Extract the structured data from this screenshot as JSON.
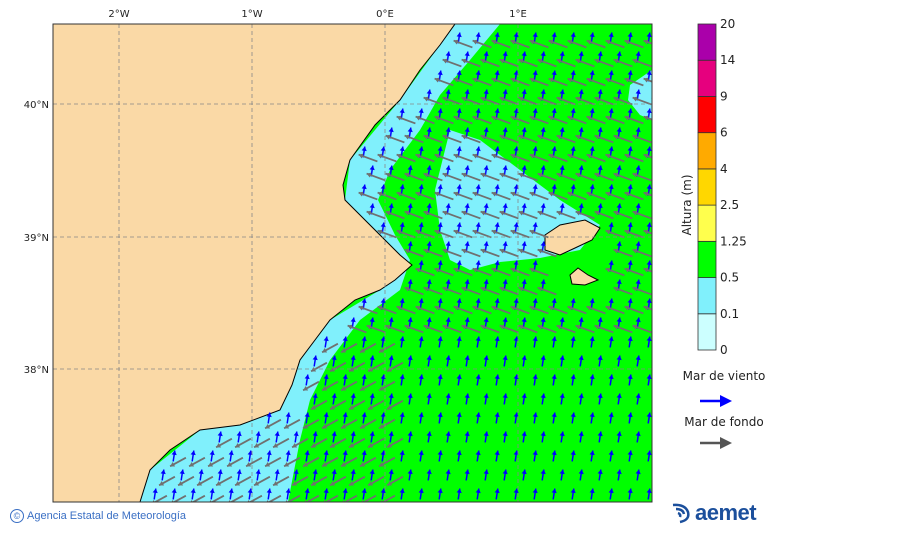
{
  "map": {
    "lon_labels": [
      "2°W",
      "1°W",
      "0°E",
      "1°E"
    ],
    "lat_labels": [
      "40°N",
      "39°N",
      "38°N"
    ],
    "colors": {
      "land": "#fad9a6",
      "sea_low": "#80f0fc",
      "sea_mid": "#00ff00",
      "wind_sea_arrow": "#0000ff",
      "swell_arrow": "#707070"
    }
  },
  "legend": {
    "title": "Altura (m)",
    "levels": [
      "0",
      "0.1",
      "0.5",
      "1.25",
      "2.5",
      "4",
      "6",
      "9",
      "14",
      "20"
    ],
    "colors": [
      "#ccffff",
      "#80f0fc",
      "#00ff00",
      "#ffff4d",
      "#ffd700",
      "#ffaa00",
      "#ff0000",
      "#e6007e",
      "#aa00aa"
    ],
    "wind_sea_label": "Mar de viento",
    "swell_label": "Mar de fondo"
  },
  "footer": {
    "copyright_symbol": "©",
    "agency": "Agencia Estatal de Meteorología",
    "logo_text": "aemet"
  }
}
